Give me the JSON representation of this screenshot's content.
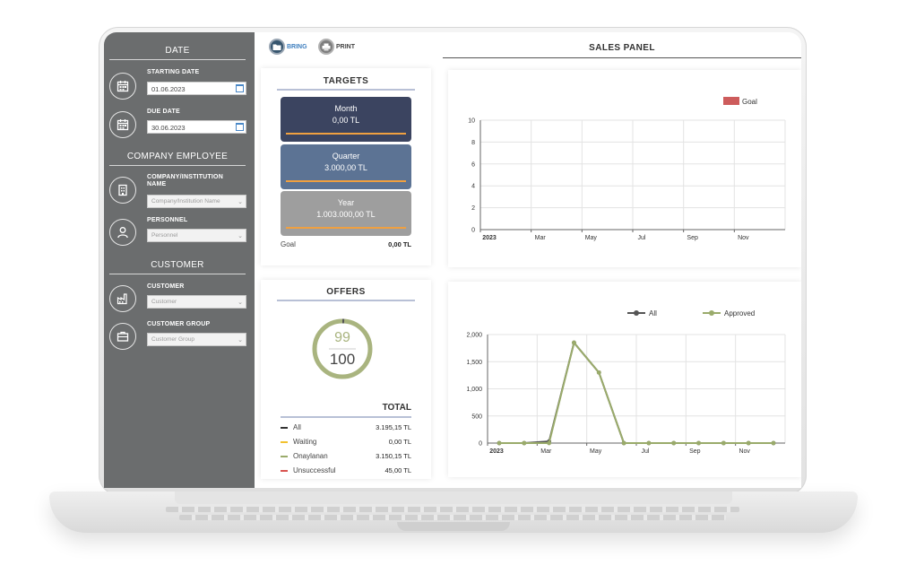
{
  "sidebar": {
    "date_title": "DATE",
    "starting_date_label": "STARTING DATE",
    "starting_date_value": "01.06.2023",
    "due_date_label": "DUE DATE",
    "due_date_value": "30.06.2023",
    "company_employee_title": "COMPANY EMPLOYEE",
    "company_label_line1": "COMPANY/INSTITUTION",
    "company_label_line2": "NAME",
    "company_placeholder": "Company/Institution Name",
    "personnel_label": "PERSONNEL",
    "personnel_placeholder": "Personnel",
    "customer_title": "CUSTOMER",
    "customer_label": "CUSTOMER",
    "customer_placeholder": "Customer",
    "customer_group_label": "CUSTOMER GROUP",
    "customer_group_placeholder": "Customer Group"
  },
  "toolbar": {
    "bring_label": "BRING",
    "print_label": "PRINT"
  },
  "targets": {
    "title": "TARGETS",
    "month_label": "Month",
    "month_value": "0,00 TL",
    "quarter_label": "Quarter",
    "quarter_value": "3.000,00 TL",
    "year_label": "Year",
    "year_value": "1.003.000,00 TL",
    "goal_label": "Goal",
    "goal_value": "0,00 TL",
    "colors": {
      "month": "#3b4460",
      "quarter": "#5c7394",
      "year": "#9e9e9e",
      "bar": "#f0a040"
    }
  },
  "offers": {
    "title": "OFFERS",
    "approved_count": "99",
    "total_count": "100",
    "total_title": "TOTAL",
    "rows": [
      {
        "label": "All",
        "amount": "3.195,15 TL",
        "color": "#333333"
      },
      {
        "label": "Waiting",
        "amount": "0,00 TL",
        "color": "#f2c12e"
      },
      {
        "label": "Onaylanan",
        "amount": "3.150,15 TL",
        "color": "#9aab6b"
      },
      {
        "label": "Unsuccessful",
        "amount": "45,00 TL",
        "color": "#d9534f"
      }
    ]
  },
  "panel": {
    "title": "SALES PANEL"
  },
  "chart_data": [
    {
      "type": "bar",
      "legend": [
        "Goal"
      ],
      "legend_placement": "top-right",
      "series_color": "#cd5c5c",
      "x_tick_labels": [
        "2023",
        "Mar",
        "May",
        "Jul",
        "Sep",
        "Nov"
      ],
      "y_ticks": [
        "0",
        "2",
        "4",
        "6",
        "8",
        "10"
      ],
      "ylim": [
        0,
        10
      ],
      "grid": true,
      "series": [
        {
          "name": "Goal",
          "values": []
        }
      ]
    },
    {
      "type": "line",
      "legend_placement": "top",
      "x_tick_labels": [
        "2023",
        "Mar",
        "May",
        "Jul",
        "Sep",
        "Nov"
      ],
      "y_ticks": [
        "0",
        "500",
        "1,000",
        "1,500",
        "2,000"
      ],
      "ylim": [
        0,
        2000
      ],
      "grid": true,
      "x": [
        1,
        2,
        3,
        4,
        5,
        6,
        7,
        8,
        9,
        10,
        11,
        12
      ],
      "series": [
        {
          "name": "All",
          "color": "#555555",
          "values": [
            0,
            0,
            30,
            1850,
            1300,
            0,
            0,
            0,
            0,
            0,
            0,
            0
          ]
        },
        {
          "name": "Approved",
          "color": "#9aab6b",
          "values": [
            0,
            0,
            0,
            1850,
            1300,
            0,
            0,
            0,
            0,
            0,
            0,
            0
          ]
        }
      ]
    }
  ]
}
